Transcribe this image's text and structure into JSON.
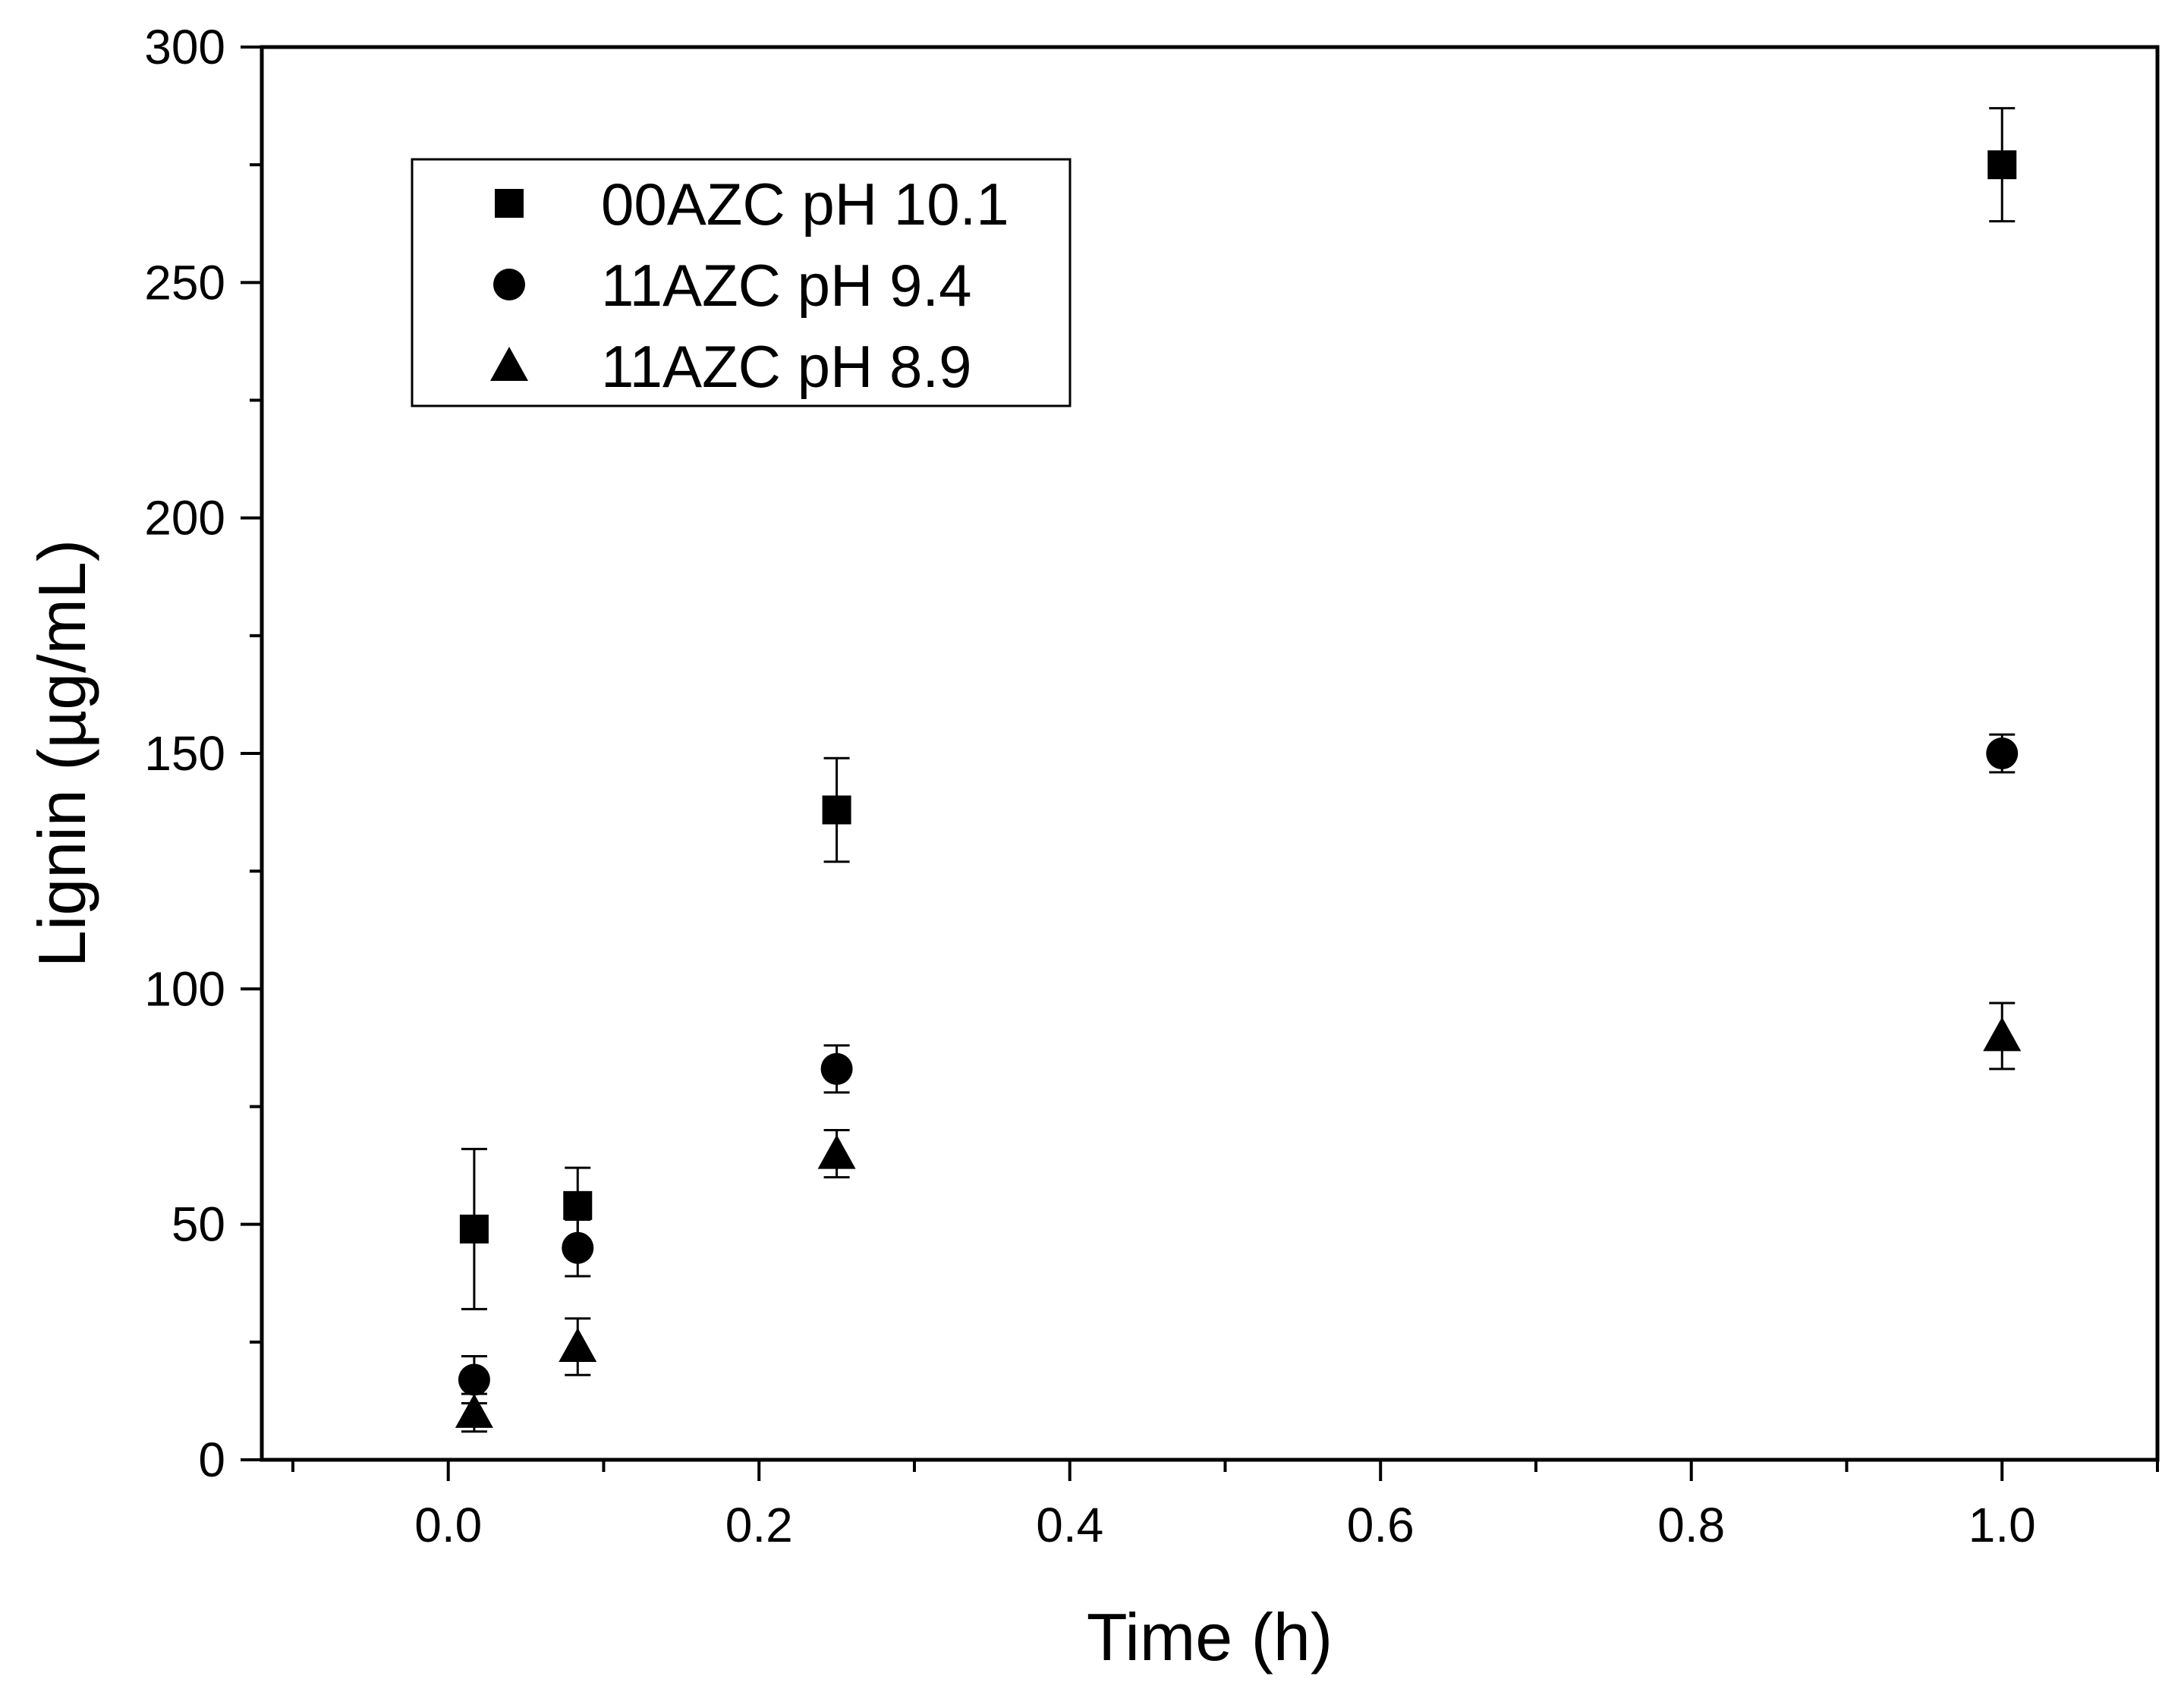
{
  "chart_data": {
    "type": "scatter",
    "title": "",
    "xlabel": "Time (h)",
    "ylabel": "Lignin (µg/mL)",
    "xlim": [
      -0.12,
      1.1
    ],
    "ylim": [
      0,
      300
    ],
    "xticks": [
      0.0,
      0.2,
      0.4,
      0.6,
      0.8,
      1.0
    ],
    "xtick_labels": [
      "0.0",
      "0.2",
      "0.4",
      "0.6",
      "0.8",
      "1.0"
    ],
    "yticks": [
      0,
      50,
      100,
      150,
      200,
      250,
      300
    ],
    "ytick_labels": [
      "0",
      "50",
      "100",
      "150",
      "200",
      "250",
      "300"
    ],
    "grid": false,
    "legend_position": "top-left",
    "series": [
      {
        "name": "00AZC pH 10.1",
        "marker": "square",
        "x": [
          0.0167,
          0.0833,
          0.25,
          1.0
        ],
        "y": [
          49,
          54,
          138,
          275
        ],
        "err_low": [
          17,
          8,
          11,
          12
        ],
        "err_high": [
          17,
          8,
          11,
          12
        ]
      },
      {
        "name": "11AZC pH 9.4",
        "marker": "circle",
        "x": [
          0.0167,
          0.0833,
          0.25,
          1.0
        ],
        "y": [
          17,
          45,
          83,
          150
        ],
        "err_low": [
          5,
          6,
          5,
          4
        ],
        "err_high": [
          5,
          6,
          5,
          4
        ]
      },
      {
        "name": "11AZC pH 8.9",
        "marker": "triangle",
        "x": [
          0.0167,
          0.0833,
          0.25,
          1.0
        ],
        "y": [
          10,
          24,
          65,
          90
        ],
        "err_low": [
          4,
          6,
          5,
          7
        ],
        "err_high": [
          4,
          6,
          5,
          7
        ]
      }
    ]
  }
}
